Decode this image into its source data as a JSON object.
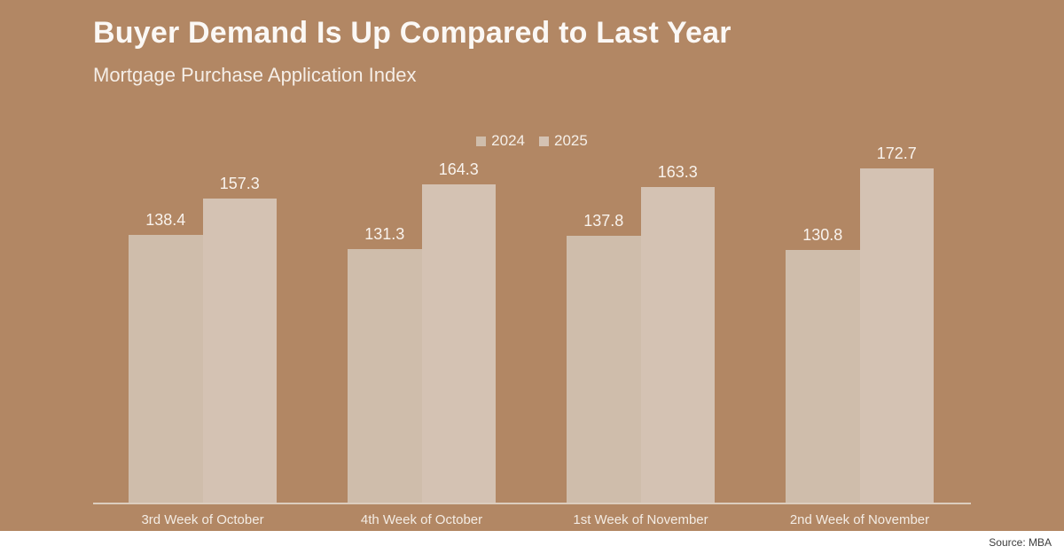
{
  "slide": {
    "title": "Buyer Demand Is Up Compared to Last Year",
    "subtitle": "Mortgage Purchase Application Index",
    "source": "Source: MBA"
  },
  "colors": {
    "background": "#b28764",
    "series_2024": "#cfbdab",
    "series_2025": "#d4c2b3",
    "axis_line": "#dccdbe",
    "title_text": "#fbf8f5",
    "label_text": "#f9f3ed",
    "footer_background": "#ffffff",
    "source_text": "#3d3d3d"
  },
  "chart_data": {
    "type": "bar",
    "title": "Buyer Demand Is Up Compared to Last Year",
    "subtitle": "Mortgage Purchase Application Index",
    "categories": [
      "3rd Week of October",
      "4th Week of October",
      "1st Week of November",
      "2nd Week of November"
    ],
    "series": [
      {
        "name": "2024",
        "color": "#cfbdab",
        "values": [
          138.4,
          131.3,
          137.8,
          130.8
        ]
      },
      {
        "name": "2025",
        "color": "#d4c2b3",
        "values": [
          157.3,
          164.3,
          163.3,
          172.7
        ]
      }
    ],
    "ylim": [
      0,
      180
    ],
    "grid": false,
    "legend_position": "top-center",
    "value_labels": true,
    "xlabel": "",
    "ylabel": ""
  }
}
